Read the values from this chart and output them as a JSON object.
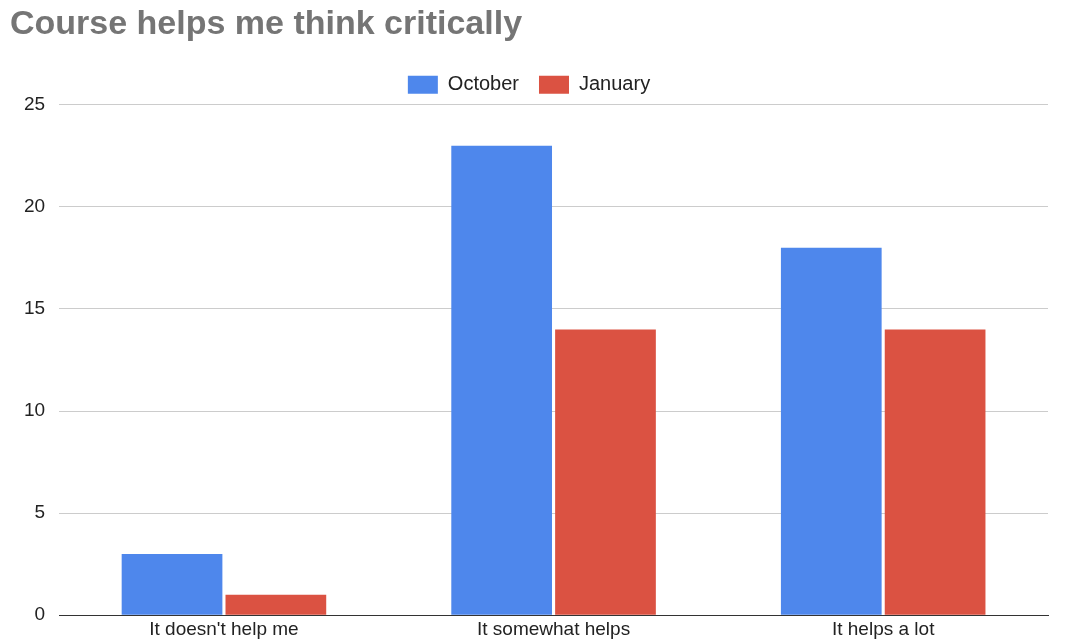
{
  "chart_data": {
    "type": "bar",
    "title": "Course helps me think critically",
    "categories": [
      "It doesn't help me",
      "It somewhat helps",
      "It helps a lot"
    ],
    "series": [
      {
        "name": "October",
        "color": "#4e87ec",
        "values": [
          3,
          23,
          18
        ]
      },
      {
        "name": "January",
        "color": "#db5242",
        "values": [
          1,
          14,
          14
        ]
      }
    ],
    "ylim": [
      0,
      25
    ],
    "yticks": [
      0,
      5,
      10,
      15,
      20,
      25
    ],
    "grid": "y",
    "legend": "top"
  }
}
